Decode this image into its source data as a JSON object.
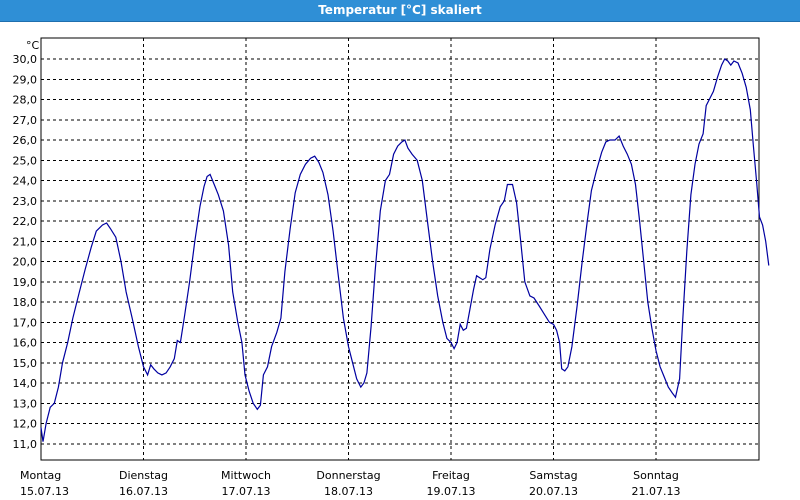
{
  "window": {
    "title": "Temperatur [°C] skaliert"
  },
  "chart_data": {
    "type": "line",
    "ylabel": "°C",
    "ylim": [
      10.5,
      30.8
    ],
    "yticks": [
      "11,0",
      "12,0",
      "13,0",
      "14,0",
      "15,0",
      "16,0",
      "17,0",
      "18,0",
      "19,0",
      "20,0",
      "21,0",
      "22,0",
      "23,0",
      "24,0",
      "25,0",
      "26,0",
      "27,0",
      "28,0",
      "29,0",
      "30,0"
    ],
    "days": [
      {
        "name": "Montag",
        "date": "15.07.13"
      },
      {
        "name": "Dienstag",
        "date": "16.07.13"
      },
      {
        "name": "Mittwoch",
        "date": "17.07.13"
      },
      {
        "name": "Donnerstag",
        "date": "18.07.13"
      },
      {
        "name": "Freitag",
        "date": "19.07.13"
      },
      {
        "name": "Samstag",
        "date": "20.07.13"
      },
      {
        "name": "Sonntag",
        "date": "21.07.13"
      }
    ],
    "grid": true,
    "line_color": "#0000a0",
    "series": [
      {
        "points": [
          [
            0.0,
            11.8
          ],
          [
            0.02,
            11.1
          ],
          [
            0.05,
            12.0
          ],
          [
            0.09,
            12.8
          ],
          [
            0.13,
            13.0
          ],
          [
            0.17,
            13.8
          ],
          [
            0.21,
            15.0
          ],
          [
            0.26,
            16.0
          ],
          [
            0.31,
            17.2
          ],
          [
            0.37,
            18.4
          ],
          [
            0.43,
            19.6
          ],
          [
            0.49,
            20.7
          ],
          [
            0.54,
            21.5
          ],
          [
            0.6,
            21.8
          ],
          [
            0.64,
            21.9
          ],
          [
            0.68,
            21.6
          ],
          [
            0.73,
            21.2
          ],
          [
            0.78,
            20.0
          ],
          [
            0.83,
            18.5
          ],
          [
            0.89,
            17.2
          ],
          [
            0.95,
            15.8
          ],
          [
            1.0,
            14.8
          ],
          [
            1.04,
            14.4
          ],
          [
            1.07,
            14.9
          ],
          [
            1.1,
            14.7
          ],
          [
            1.14,
            14.5
          ],
          [
            1.18,
            14.4
          ],
          [
            1.22,
            14.5
          ],
          [
            1.26,
            14.8
          ],
          [
            1.3,
            15.2
          ],
          [
            1.33,
            16.1
          ],
          [
            1.36,
            16.0
          ],
          [
            1.4,
            17.3
          ],
          [
            1.45,
            19.0
          ],
          [
            1.5,
            21.0
          ],
          [
            1.55,
            22.7
          ],
          [
            1.59,
            23.7
          ],
          [
            1.62,
            24.2
          ],
          [
            1.65,
            24.3
          ],
          [
            1.69,
            23.8
          ],
          [
            1.73,
            23.3
          ],
          [
            1.78,
            22.5
          ],
          [
            1.83,
            20.8
          ],
          [
            1.87,
            18.5
          ],
          [
            1.92,
            17.0
          ],
          [
            1.96,
            16.0
          ],
          [
            1.99,
            14.4
          ],
          [
            2.03,
            13.6
          ],
          [
            2.07,
            13.0
          ],
          [
            2.11,
            12.7
          ],
          [
            2.14,
            12.9
          ],
          [
            2.17,
            14.4
          ],
          [
            2.21,
            14.8
          ],
          [
            2.25,
            15.8
          ],
          [
            2.3,
            16.5
          ],
          [
            2.34,
            17.2
          ],
          [
            2.38,
            19.5
          ],
          [
            2.43,
            21.6
          ],
          [
            2.48,
            23.4
          ],
          [
            2.53,
            24.3
          ],
          [
            2.58,
            24.8
          ],
          [
            2.63,
            25.1
          ],
          [
            2.67,
            25.2
          ],
          [
            2.71,
            24.9
          ],
          [
            2.75,
            24.4
          ],
          [
            2.8,
            23.3
          ],
          [
            2.85,
            21.5
          ],
          [
            2.9,
            19.3
          ],
          [
            2.95,
            17.2
          ],
          [
            3.0,
            15.8
          ],
          [
            3.04,
            15.0
          ],
          [
            3.08,
            14.2
          ],
          [
            3.12,
            13.8
          ],
          [
            3.15,
            14.0
          ],
          [
            3.18,
            14.5
          ],
          [
            3.22,
            16.8
          ],
          [
            3.26,
            19.5
          ],
          [
            3.31,
            22.5
          ],
          [
            3.36,
            24.0
          ],
          [
            3.4,
            24.3
          ],
          [
            3.44,
            25.3
          ],
          [
            3.48,
            25.7
          ],
          [
            3.52,
            25.9
          ],
          [
            3.55,
            26.0
          ],
          [
            3.58,
            25.6
          ],
          [
            3.62,
            25.3
          ],
          [
            3.67,
            25.0
          ],
          [
            3.72,
            24.0
          ],
          [
            3.77,
            22.0
          ],
          [
            3.82,
            20.0
          ],
          [
            3.87,
            18.3
          ],
          [
            3.92,
            17.0
          ],
          [
            3.96,
            16.2
          ],
          [
            4.0,
            16.0
          ],
          [
            4.03,
            15.7
          ],
          [
            4.06,
            16.0
          ],
          [
            4.09,
            16.9
          ],
          [
            4.12,
            16.6
          ],
          [
            4.15,
            16.7
          ],
          [
            4.18,
            17.5
          ],
          [
            4.22,
            18.6
          ],
          [
            4.25,
            19.3
          ],
          [
            4.28,
            19.2
          ],
          [
            4.31,
            19.1
          ],
          [
            4.34,
            19.2
          ],
          [
            4.38,
            20.6
          ],
          [
            4.43,
            21.8
          ],
          [
            4.48,
            22.7
          ],
          [
            4.52,
            23.0
          ],
          [
            4.55,
            23.8
          ],
          [
            4.6,
            23.8
          ],
          [
            4.64,
            22.9
          ],
          [
            4.68,
            21.0
          ],
          [
            4.72,
            19.0
          ],
          [
            4.77,
            18.3
          ],
          [
            4.81,
            18.2
          ],
          [
            4.86,
            17.8
          ],
          [
            4.91,
            17.4
          ],
          [
            4.96,
            17.0
          ],
          [
            5.0,
            16.9
          ],
          [
            5.03,
            16.6
          ],
          [
            5.06,
            16.0
          ],
          [
            5.08,
            14.7
          ],
          [
            5.11,
            14.6
          ],
          [
            5.14,
            14.8
          ],
          [
            5.18,
            15.8
          ],
          [
            5.23,
            17.8
          ],
          [
            5.28,
            20.0
          ],
          [
            5.33,
            22.0
          ],
          [
            5.37,
            23.5
          ],
          [
            5.42,
            24.5
          ],
          [
            5.47,
            25.4
          ],
          [
            5.51,
            25.9
          ],
          [
            5.55,
            26.0
          ],
          [
            5.6,
            26.0
          ],
          [
            5.64,
            26.2
          ],
          [
            5.68,
            25.7
          ],
          [
            5.72,
            25.3
          ],
          [
            5.76,
            24.8
          ],
          [
            5.8,
            23.8
          ],
          [
            5.84,
            22.0
          ],
          [
            5.88,
            20.0
          ],
          [
            5.92,
            18.0
          ],
          [
            5.96,
            16.7
          ],
          [
            6.0,
            15.6
          ],
          [
            6.04,
            14.8
          ],
          [
            6.08,
            14.3
          ],
          [
            6.12,
            13.8
          ],
          [
            6.16,
            13.5
          ],
          [
            6.19,
            13.3
          ],
          [
            6.23,
            14.2
          ],
          [
            6.26,
            17.0
          ],
          [
            6.3,
            20.5
          ],
          [
            6.34,
            23.3
          ],
          [
            6.38,
            24.8
          ],
          [
            6.42,
            25.8
          ],
          [
            6.46,
            26.3
          ],
          [
            6.49,
            27.7
          ],
          [
            6.52,
            28.0
          ],
          [
            6.56,
            28.4
          ],
          [
            6.6,
            29.1
          ],
          [
            6.64,
            29.7
          ],
          [
            6.67,
            30.0
          ],
          [
            6.7,
            29.9
          ],
          [
            6.73,
            29.7
          ],
          [
            6.76,
            29.9
          ],
          [
            6.8,
            29.8
          ],
          [
            6.84,
            29.3
          ],
          [
            6.88,
            28.6
          ],
          [
            6.92,
            27.5
          ],
          [
            6.95,
            25.7
          ],
          [
            6.98,
            24.0
          ],
          [
            7.01,
            22.2
          ],
          [
            7.04,
            21.8
          ],
          [
            7.07,
            21.0
          ],
          [
            7.1,
            19.8
          ]
        ]
      }
    ]
  }
}
